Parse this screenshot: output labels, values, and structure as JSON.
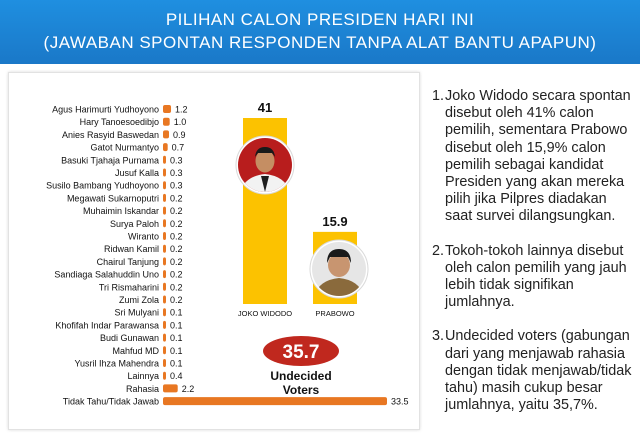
{
  "header": {
    "title_line1": "PILIHAN CALON PRESIDEN HARI INI",
    "title_line2": "(JAWABAN SPONTAN RESPONDEN TANPA ALAT BANTU APAPUN)"
  },
  "colors": {
    "header_bg": "#1a7fd4",
    "bar_orange": "#e87722",
    "bar_yellow": "#fcc200",
    "badge_red": "#c0281e"
  },
  "chart_data": [
    {
      "type": "bar",
      "orientation": "horizontal",
      "categories": [
        "Agus Harimurti Yudhoyono",
        "Hary Tanoesoedibjo",
        "Anies Rasyid Baswedan",
        "Gatot Nurmantyo",
        "Basuki Tjahaja Purnama",
        "Jusuf Kalla",
        "Susilo Bambang Yudhoyono",
        "Megawati Sukarnoputri",
        "Muhaimin Iskandar",
        "Surya Paloh",
        "Wiranto",
        "Ridwan Kamil",
        "Chairul Tanjung",
        "Sandiaga Salahuddin Uno",
        "Tri Rismaharini",
        "Zumi Zola",
        "Sri Mulyani",
        "Khofifah Indar Parawansa",
        "Budi Gunawan",
        "Mahfud MD",
        "Yusril Ihza Mahendra",
        "Lainnya",
        "Rahasia",
        "Tidak Tahu/Tidak Jawab"
      ],
      "values": [
        1.2,
        1.0,
        0.9,
        0.7,
        0.3,
        0.3,
        0.3,
        0.2,
        0.2,
        0.2,
        0.2,
        0.2,
        0.2,
        0.2,
        0.2,
        0.2,
        0.1,
        0.1,
        0.1,
        0.1,
        0.1,
        0.4,
        2.2,
        33.5
      ],
      "value_labels": [
        "1.2",
        "1.0",
        "0.9",
        "0.7",
        "0.3",
        "0.3",
        "0.3",
        "0.2",
        "0.2",
        "0.2",
        "0.2",
        "0.2",
        "0.2",
        "0.2",
        "0.2",
        "0.2",
        "0.1",
        "0.1",
        "0.1",
        "0.1",
        "0.1",
        "0.4",
        "2.2",
        "33.5"
      ],
      "xlim": [
        0,
        33.5
      ]
    },
    {
      "type": "bar",
      "orientation": "vertical",
      "categories": [
        "JOKO WIDODO",
        "PRABOWO"
      ],
      "values": [
        41,
        15.9
      ],
      "value_labels": [
        "41",
        "15.9"
      ],
      "ylim": [
        0,
        41
      ]
    }
  ],
  "undecided": {
    "value": "35.7",
    "label_line1": "Undecided",
    "label_line2": "Voters"
  },
  "notes": [
    {
      "num": "1.",
      "text": "Joko Widodo secara spontan disebut oleh 41% calon pemilih, sementara Prabowo disebut oleh 15,9% calon pemilih sebagai kandidat Presiden yang akan mereka pilih jika Pilpres diadakan saat survei dilangsungkan."
    },
    {
      "num": "2.",
      "text": " Tokoh-tokoh lainnya disebut oleh calon pemilih yang jauh lebih tidak signifikan jumlahnya."
    },
    {
      "num": "3.",
      "text": "Undecided voters (gabungan dari yang menjawab rahasia dengan tidak menjawab/tidak tahu) masih cukup besar jumlahnya, yaitu 35,7%."
    }
  ]
}
